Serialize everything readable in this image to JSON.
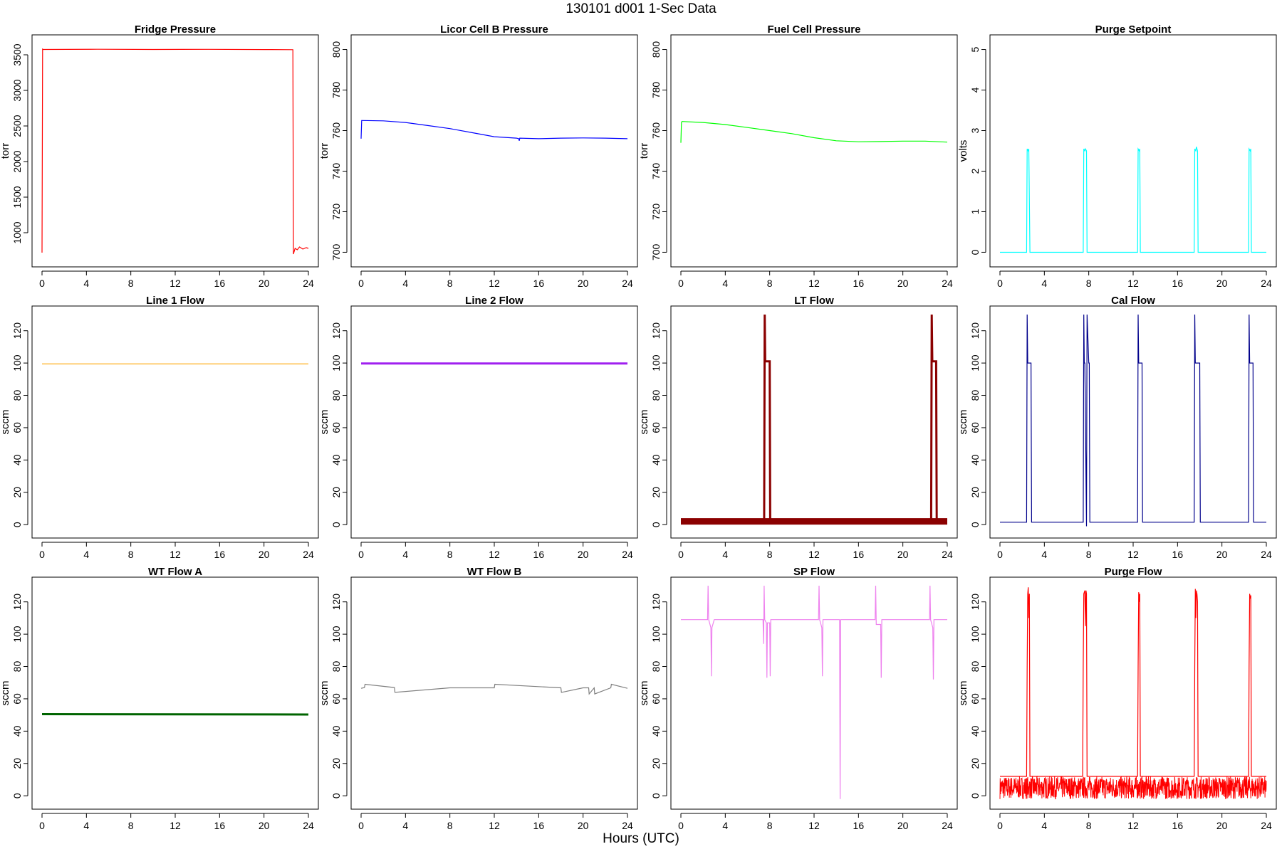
{
  "figure": {
    "title": "130101   d001   1-Sec Data",
    "x_caption": "Hours (UTC)"
  },
  "chart_data": [
    {
      "type": "line",
      "title": "Fridge Pressure",
      "xlabel": "",
      "ylabel": "torr",
      "xlim": [
        0,
        24
      ],
      "ylim": [
        640,
        3660
      ],
      "xticks": [
        0,
        4,
        8,
        12,
        16,
        20,
        24
      ],
      "yticks": [
        1000,
        1500,
        2000,
        2500,
        3000,
        3500
      ],
      "color": "#ff0000",
      "series": [
        {
          "x": [
            0,
            0.05,
            0.1,
            5,
            10,
            15,
            20,
            22.6,
            22.65,
            22.8,
            23,
            23.2,
            23.5,
            23.8,
            24
          ],
          "y": [
            720,
            3580,
            3575,
            3578,
            3575,
            3577,
            3574,
            3572,
            700,
            780,
            760,
            800,
            770,
            790,
            780
          ]
        }
      ]
    },
    {
      "type": "line",
      "title": "Licor Cell B Pressure",
      "xlabel": "",
      "ylabel": "torr",
      "xlim": [
        0,
        24
      ],
      "ylim": [
        697,
        803
      ],
      "xticks": [
        0,
        4,
        8,
        12,
        16,
        20,
        24
      ],
      "yticks": [
        700,
        720,
        740,
        760,
        780,
        800
      ],
      "color": "#0000ff",
      "series": [
        {
          "x": [
            0,
            0.05,
            0.1,
            2,
            4,
            6,
            8,
            10,
            12,
            14,
            14.2,
            14.25,
            14.3,
            16,
            18,
            20,
            22,
            24
          ],
          "y": [
            756,
            765,
            765,
            764.8,
            764,
            762.5,
            761,
            759,
            757,
            756.3,
            756,
            755,
            756.3,
            756,
            756.3,
            756.4,
            756.3,
            756
          ]
        }
      ]
    },
    {
      "type": "line",
      "title": "Fuel Cell Pressure",
      "xlabel": "",
      "ylabel": "torr",
      "xlim": [
        0,
        24
      ],
      "ylim": [
        697,
        803
      ],
      "xticks": [
        0,
        4,
        8,
        12,
        16,
        20,
        24
      ],
      "yticks": [
        700,
        720,
        740,
        760,
        780,
        800
      ],
      "color": "#00ff00",
      "series": [
        {
          "x": [
            0,
            0.05,
            0.1,
            2,
            4,
            6,
            8,
            10,
            12,
            14,
            16,
            18,
            20,
            22,
            24
          ],
          "y": [
            754,
            764,
            764.5,
            764,
            763,
            761.5,
            760,
            758.5,
            756.5,
            755,
            754.5,
            754.6,
            754.8,
            754.8,
            754.3
          ]
        }
      ]
    },
    {
      "type": "line",
      "title": "Purge Setpoint",
      "xlabel": "",
      "ylabel": "volts",
      "xlim": [
        0,
        24
      ],
      "ylim": [
        -0.15,
        5.15
      ],
      "xticks": [
        0,
        4,
        8,
        12,
        16,
        20,
        24
      ],
      "yticks": [
        0,
        1,
        2,
        3,
        4,
        5
      ],
      "color": "#00ffff",
      "series": [
        {
          "x": [
            0,
            2.4,
            2.45,
            2.55,
            2.6,
            2.7,
            7.5,
            7.55,
            7.65,
            7.7,
            7.8,
            7.85,
            12.4,
            12.45,
            12.55,
            12.6,
            12.65,
            17.5,
            17.55,
            17.65,
            17.7,
            17.75,
            17.8,
            17.85,
            22.4,
            22.45,
            22.55,
            22.6,
            22.65,
            24
          ],
          "y": [
            0,
            0,
            2.55,
            2.5,
            2.55,
            0,
            0,
            2.55,
            2.5,
            2.55,
            2.5,
            0,
            0,
            2.55,
            2.5,
            2.55,
            0,
            0,
            2.55,
            2.5,
            2.6,
            2.55,
            2.5,
            0,
            0,
            2.55,
            2.5,
            2.55,
            0,
            0
          ]
        }
      ]
    },
    {
      "type": "line",
      "title": "Line 1 Flow",
      "xlabel": "",
      "ylabel": "sccm",
      "xlim": [
        0,
        24
      ],
      "ylim": [
        -3,
        130
      ],
      "xticks": [
        0,
        4,
        8,
        12,
        16,
        20,
        24
      ],
      "yticks": [
        0,
        20,
        40,
        60,
        80,
        100,
        120
      ],
      "color": "#ffa500",
      "series": [
        {
          "x": [
            0,
            24
          ],
          "y": [
            99.5,
            99.5
          ]
        }
      ]
    },
    {
      "type": "line",
      "title": "Line 2 Flow",
      "xlabel": "",
      "ylabel": "sccm",
      "xlim": [
        0,
        24
      ],
      "ylim": [
        -3,
        130
      ],
      "xticks": [
        0,
        4,
        8,
        12,
        16,
        20,
        24
      ],
      "yticks": [
        0,
        20,
        40,
        60,
        80,
        100,
        120
      ],
      "color": "#a020f0",
      "series": [
        {
          "x": [
            0,
            24
          ],
          "y": [
            99.7,
            99.7
          ]
        }
      ]
    },
    {
      "type": "line",
      "title": "LT Flow",
      "xlabel": "",
      "ylabel": "sccm",
      "xlim": [
        0,
        24
      ],
      "ylim": [
        -3,
        130
      ],
      "xticks": [
        0,
        4,
        8,
        12,
        16,
        20,
        24
      ],
      "yticks": [
        0,
        20,
        40,
        60,
        80,
        100,
        120
      ],
      "color": "#8b0000",
      "series": [
        {
          "x": [
            0,
            7.5,
            7.55,
            7.6,
            7.65,
            8,
            8.05,
            22.55,
            22.6,
            22.65,
            22.7,
            23,
            23.05,
            24
          ],
          "y": [
            2,
            2,
            130,
            101,
            101,
            101,
            2,
            2,
            130,
            101,
            101,
            101,
            2,
            2
          ]
        }
      ]
    },
    {
      "type": "line",
      "title": "Cal Flow",
      "xlabel": "",
      "ylabel": "sccm",
      "xlim": [
        0,
        24
      ],
      "ylim": [
        -3,
        130
      ],
      "xticks": [
        0,
        4,
        8,
        12,
        16,
        20,
        24
      ],
      "yticks": [
        0,
        20,
        40,
        60,
        80,
        100,
        120
      ],
      "color": "#00008b",
      "series": [
        {
          "x": [
            0,
            2.4,
            2.45,
            2.5,
            2.55,
            2.8,
            2.85,
            7.5,
            7.55,
            7.6,
            7.65,
            7.8,
            7.85,
            8,
            8.05,
            8.1,
            12.4,
            12.45,
            12.5,
            12.55,
            12.8,
            12.85,
            17.5,
            17.55,
            17.6,
            17.65,
            18,
            18.05,
            22.4,
            22.45,
            22.5,
            22.55,
            22.8,
            22.85,
            24
          ],
          "y": [
            1.5,
            1.5,
            130,
            100,
            100,
            100,
            1.5,
            1.5,
            130,
            100,
            100,
            -1,
            130,
            100,
            100,
            1.5,
            1.5,
            130,
            100,
            100,
            100,
            1.5,
            1.5,
            130,
            100,
            100,
            100,
            1.5,
            1.5,
            130,
            100,
            100,
            100,
            1.5,
            1.5
          ]
        }
      ]
    },
    {
      "type": "line",
      "title": "WT Flow A",
      "xlabel": "",
      "ylabel": "sccm",
      "xlim": [
        0,
        24
      ],
      "ylim": [
        -3,
        130
      ],
      "xticks": [
        0,
        4,
        8,
        12,
        16,
        20,
        24
      ],
      "yticks": [
        0,
        20,
        40,
        60,
        80,
        100,
        120
      ],
      "color": "#006400",
      "series": [
        {
          "x": [
            0,
            24
          ],
          "y": [
            50.5,
            50.3
          ]
        }
      ]
    },
    {
      "type": "line",
      "title": "WT Flow B",
      "xlabel": "",
      "ylabel": "sccm",
      "xlim": [
        0,
        24
      ],
      "ylim": [
        -3,
        130
      ],
      "xticks": [
        0,
        4,
        8,
        12,
        16,
        20,
        24
      ],
      "yticks": [
        0,
        20,
        40,
        60,
        80,
        100,
        120
      ],
      "color": "#808080",
      "series": [
        {
          "x": [
            0,
            0.3,
            0.35,
            3,
            3.05,
            8,
            12,
            12.05,
            18,
            18.05,
            20,
            20.5,
            20.55,
            21,
            21.05,
            22.5,
            22.55,
            24
          ],
          "y": [
            66.5,
            67,
            69,
            67,
            64,
            66.8,
            66.8,
            69,
            66.8,
            64,
            66.8,
            66.8,
            63,
            66.8,
            63,
            66.8,
            69,
            66.5
          ]
        }
      ]
    },
    {
      "type": "line",
      "title": "SP Flow",
      "xlabel": "",
      "ylabel": "sccm",
      "xlim": [
        0,
        24
      ],
      "ylim": [
        -3,
        130
      ],
      "xticks": [
        0,
        4,
        8,
        12,
        16,
        20,
        24
      ],
      "yticks": [
        0,
        20,
        40,
        60,
        80,
        100,
        120
      ],
      "color": "#ee82ee",
      "series": [
        {
          "x": [
            0,
            2.4,
            2.45,
            2.5,
            2.7,
            2.75,
            2.8,
            3,
            7.4,
            7.45,
            7.5,
            7.55,
            7.7,
            7.75,
            7.8,
            8,
            8.05,
            8.1,
            12.4,
            12.45,
            12.5,
            12.7,
            12.75,
            12.8,
            14.3,
            14.35,
            14.4,
            17.5,
            17.55,
            17.6,
            18,
            18.05,
            18.1,
            22.4,
            22.45,
            22.5,
            22.7,
            22.75,
            22.8,
            24
          ],
          "y": [
            109,
            109,
            130,
            109,
            104,
            74,
            104,
            109,
            109,
            94,
            130,
            109,
            107,
            73,
            107,
            107,
            74,
            109,
            109,
            130,
            109,
            104,
            74,
            109,
            109,
            -2,
            109,
            109,
            130,
            106,
            106,
            73,
            109,
            109,
            130,
            109,
            104,
            72,
            109,
            109
          ]
        }
      ]
    },
    {
      "type": "area",
      "title": "Purge Flow",
      "xlabel": "",
      "ylabel": "sccm",
      "xlim": [
        0,
        24
      ],
      "ylim": [
        -3,
        130
      ],
      "xticks": [
        0,
        4,
        8,
        12,
        16,
        20,
        24
      ],
      "yticks": [
        0,
        20,
        40,
        60,
        80,
        100,
        120
      ],
      "color": "#ff0000",
      "baseline_range": [
        -2,
        12
      ],
      "series": [
        {
          "x": [
            0,
            2.4,
            2.45,
            2.5,
            2.55,
            2.6,
            2.65,
            2.7,
            7.45,
            7.5,
            7.55,
            7.65,
            7.7,
            7.75,
            7.8,
            7.85,
            12.4,
            12.45,
            12.5,
            12.55,
            12.6,
            12.65,
            17.5,
            17.55,
            17.6,
            17.65,
            17.7,
            17.75,
            17.8,
            17.85,
            22.4,
            22.45,
            22.5,
            22.55,
            22.6,
            22.65,
            24
          ],
          "y": [
            12,
            12,
            80,
            125,
            129,
            110,
            125,
            12,
            12,
            80,
            125,
            127,
            105,
            127,
            125,
            12,
            12,
            80,
            126,
            120,
            125,
            12,
            12,
            80,
            128,
            110,
            127,
            125,
            120,
            12,
            12,
            80,
            125,
            122,
            124,
            12,
            12
          ]
        }
      ]
    }
  ]
}
